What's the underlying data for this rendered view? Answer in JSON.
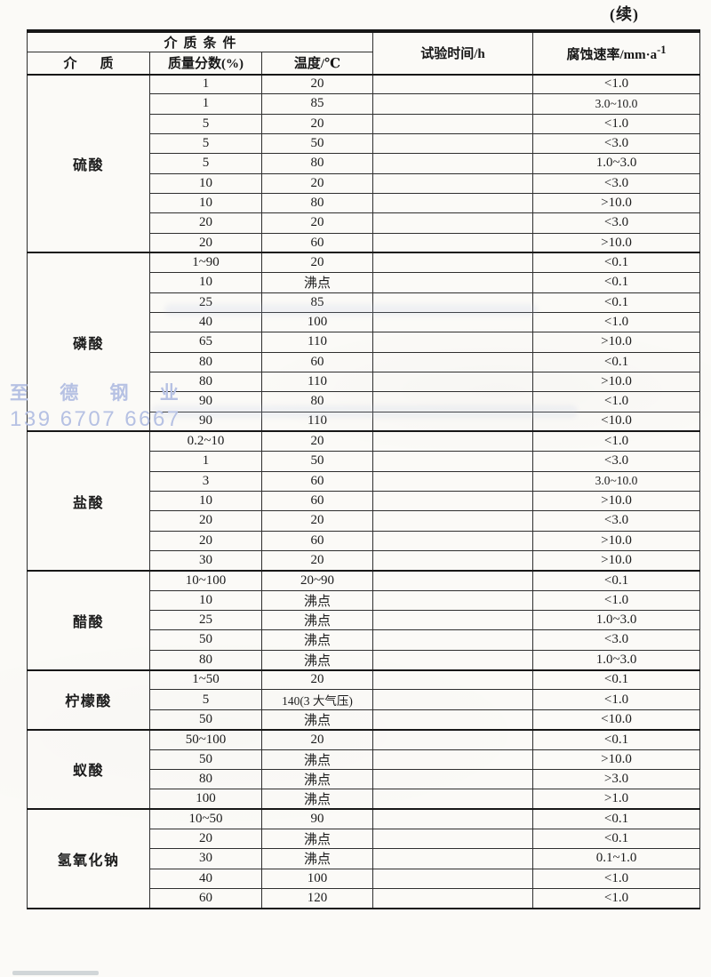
{
  "page": {
    "continuation_marker": "(续)"
  },
  "colors": {
    "paper": "#fbfaf7",
    "ink": "#1c1c1c",
    "rule_line": "#2e2e2e",
    "heavy_line": "#171717",
    "watermark": "#b6c1e3"
  },
  "watermark": {
    "line1": "至 德 钢 业",
    "line2": "139 6707 6667"
  },
  "table": {
    "header": {
      "media_condition": "介质条件",
      "medium": "介质",
      "mass_fraction": "质量分数(%)",
      "temperature": "温度/℃",
      "test_time": "试验时间/h",
      "corrosion_rate_base": "腐蚀速率/mm·a",
      "corrosion_rate_sup": "-1"
    },
    "groups": [
      {
        "medium": "硫酸",
        "rows": [
          [
            "1",
            "20",
            "",
            "<1.0"
          ],
          [
            "1",
            "85",
            "",
            "3.0~10.0"
          ],
          [
            "5",
            "20",
            "",
            "<1.0"
          ],
          [
            "5",
            "50",
            "",
            "<3.0"
          ],
          [
            "5",
            "80",
            "",
            "1.0~3.0"
          ],
          [
            "10",
            "20",
            "",
            "<3.0"
          ],
          [
            "10",
            "80",
            "",
            ">10.0"
          ],
          [
            "20",
            "20",
            "",
            "<3.0"
          ],
          [
            "20",
            "60",
            "",
            ">10.0"
          ]
        ]
      },
      {
        "medium": "磷酸",
        "rows": [
          [
            "1~90",
            "20",
            "",
            "<0.1"
          ],
          [
            "10",
            "沸点",
            "",
            "<0.1"
          ],
          [
            "25",
            "85",
            "",
            "<0.1"
          ],
          [
            "40",
            "100",
            "",
            "<1.0"
          ],
          [
            "65",
            "110",
            "",
            ">10.0"
          ],
          [
            "80",
            "60",
            "",
            "<0.1"
          ],
          [
            "80",
            "110",
            "",
            ">10.0"
          ],
          [
            "90",
            "80",
            "",
            "<1.0"
          ],
          [
            "90",
            "110",
            "",
            "<10.0"
          ]
        ]
      },
      {
        "medium": "盐酸",
        "rows": [
          [
            "0.2~10",
            "20",
            "",
            "<1.0"
          ],
          [
            "1",
            "50",
            "",
            "<3.0"
          ],
          [
            "3",
            "60",
            "",
            "3.0~10.0"
          ],
          [
            "10",
            "60",
            "",
            ">10.0"
          ],
          [
            "20",
            "20",
            "",
            "<3.0"
          ],
          [
            "20",
            "60",
            "",
            ">10.0"
          ],
          [
            "30",
            "20",
            "",
            ">10.0"
          ]
        ]
      },
      {
        "medium": "醋酸",
        "rows": [
          [
            "10~100",
            "20~90",
            "",
            "<0.1"
          ],
          [
            "10",
            "沸点",
            "",
            "<1.0"
          ],
          [
            "25",
            "沸点",
            "",
            "1.0~3.0"
          ],
          [
            "50",
            "沸点",
            "",
            "<3.0"
          ],
          [
            "80",
            "沸点",
            "",
            "1.0~3.0"
          ]
        ]
      },
      {
        "medium": "柠檬酸",
        "rows": [
          [
            "1~50",
            "20",
            "",
            "<0.1"
          ],
          [
            "5",
            "140(3 大气压)",
            "",
            "<1.0"
          ],
          [
            "50",
            "沸点",
            "",
            "<10.0"
          ]
        ]
      },
      {
        "medium": "蚁酸",
        "rows": [
          [
            "50~100",
            "20",
            "",
            "<0.1"
          ],
          [
            "50",
            "沸点",
            "",
            ">10.0"
          ],
          [
            "80",
            "沸点",
            "",
            ">3.0"
          ],
          [
            "100",
            "沸点",
            "",
            ">1.0"
          ]
        ]
      },
      {
        "medium": "氢氧化钠",
        "rows": [
          [
            "10~50",
            "90",
            "",
            "<0.1"
          ],
          [
            "20",
            "沸点",
            "",
            "<0.1"
          ],
          [
            "30",
            "沸点",
            "",
            "0.1~1.0"
          ],
          [
            "40",
            "100",
            "",
            "<1.0"
          ],
          [
            "60",
            "120",
            "",
            "<1.0"
          ]
        ]
      }
    ]
  }
}
